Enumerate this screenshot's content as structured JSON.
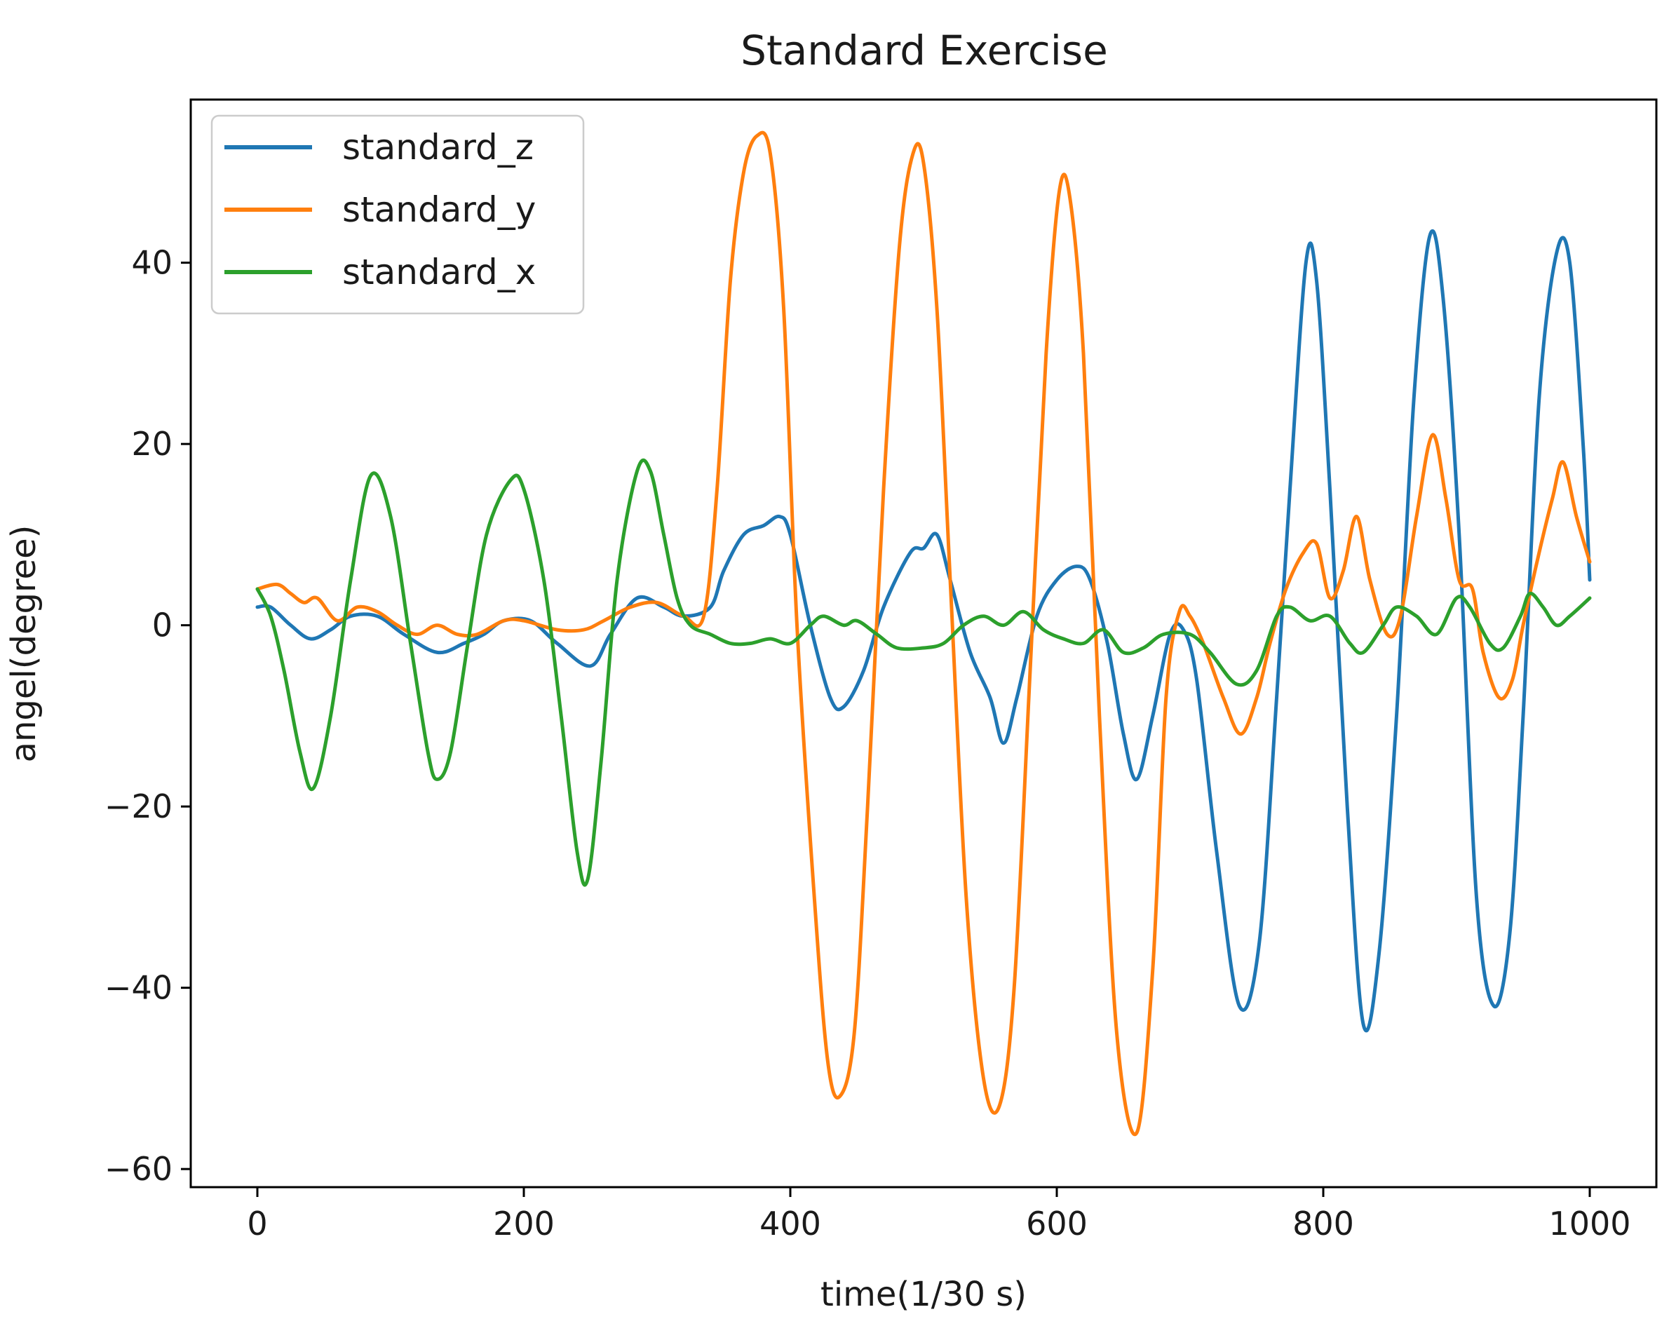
{
  "chart_data": {
    "type": "line",
    "title": "Standard Exercise",
    "xlabel": "time(1/30 s)",
    "ylabel": "angel(degree)",
    "xlim": [
      -50,
      1050
    ],
    "ylim": [
      -62,
      58
    ],
    "xticks": [
      0,
      200,
      400,
      600,
      800,
      1000
    ],
    "yticks": [
      -60,
      -40,
      -20,
      0,
      20,
      40
    ],
    "xtick_labels": [
      "0",
      "200",
      "400",
      "600",
      "800",
      "1000"
    ],
    "ytick_labels": [
      "−60",
      "−40",
      "−20",
      "0",
      "20",
      "40"
    ],
    "legend_position": "top-left",
    "series": [
      {
        "name": "standard_z",
        "color": "#1f77b4",
        "points": [
          [
            0,
            2
          ],
          [
            10,
            2
          ],
          [
            25,
            0
          ],
          [
            40,
            -1.5
          ],
          [
            55,
            -0.5
          ],
          [
            70,
            1
          ],
          [
            90,
            1
          ],
          [
            110,
            -1
          ],
          [
            135,
            -3
          ],
          [
            155,
            -2
          ],
          [
            170,
            -1
          ],
          [
            185,
            0.5
          ],
          [
            205,
            0.5
          ],
          [
            225,
            -2
          ],
          [
            250,
            -4.5
          ],
          [
            265,
            -1
          ],
          [
            285,
            3
          ],
          [
            305,
            2
          ],
          [
            320,
            1
          ],
          [
            340,
            2
          ],
          [
            350,
            6
          ],
          [
            365,
            10
          ],
          [
            380,
            11
          ],
          [
            392,
            12
          ],
          [
            400,
            10
          ],
          [
            415,
            0
          ],
          [
            430,
            -8
          ],
          [
            440,
            -9
          ],
          [
            455,
            -5
          ],
          [
            470,
            2
          ],
          [
            490,
            8
          ],
          [
            500,
            8.5
          ],
          [
            510,
            10
          ],
          [
            520,
            5
          ],
          [
            535,
            -3
          ],
          [
            550,
            -8
          ],
          [
            560,
            -13
          ],
          [
            570,
            -8
          ],
          [
            585,
            1
          ],
          [
            600,
            5
          ],
          [
            615,
            6.5
          ],
          [
            625,
            5
          ],
          [
            638,
            -2
          ],
          [
            650,
            -12
          ],
          [
            660,
            -17
          ],
          [
            672,
            -10
          ],
          [
            685,
            -1
          ],
          [
            695,
            -0.5
          ],
          [
            705,
            -6
          ],
          [
            720,
            -25
          ],
          [
            737,
            -42
          ],
          [
            752,
            -35
          ],
          [
            765,
            -8
          ],
          [
            775,
            15
          ],
          [
            787,
            40
          ],
          [
            795,
            38
          ],
          [
            805,
            15
          ],
          [
            818,
            -20
          ],
          [
            830,
            -44
          ],
          [
            842,
            -36
          ],
          [
            855,
            -10
          ],
          [
            868,
            25
          ],
          [
            880,
            43
          ],
          [
            890,
            36
          ],
          [
            902,
            10
          ],
          [
            915,
            -30
          ],
          [
            928,
            -42
          ],
          [
            940,
            -34
          ],
          [
            950,
            -10
          ],
          [
            962,
            25
          ],
          [
            975,
            41
          ],
          [
            985,
            40
          ],
          [
            995,
            20
          ],
          [
            1000,
            5
          ]
        ]
      },
      {
        "name": "standard_y",
        "color": "#ff7f0e",
        "points": [
          [
            0,
            4
          ],
          [
            15,
            4.5
          ],
          [
            25,
            3.5
          ],
          [
            35,
            2.5
          ],
          [
            45,
            3
          ],
          [
            60,
            0.5
          ],
          [
            75,
            2
          ],
          [
            90,
            1.5
          ],
          [
            105,
            0
          ],
          [
            120,
            -1
          ],
          [
            135,
            0
          ],
          [
            150,
            -1
          ],
          [
            165,
            -1
          ],
          [
            185,
            0.5
          ],
          [
            200,
            0.5
          ],
          [
            225,
            -0.5
          ],
          [
            245,
            -0.5
          ],
          [
            260,
            0.5
          ],
          [
            280,
            2
          ],
          [
            300,
            2.5
          ],
          [
            320,
            1
          ],
          [
            335,
            1
          ],
          [
            345,
            15
          ],
          [
            355,
            38
          ],
          [
            365,
            50
          ],
          [
            375,
            54
          ],
          [
            385,
            52
          ],
          [
            395,
            35
          ],
          [
            405,
            0
          ],
          [
            418,
            -30
          ],
          [
            428,
            -48
          ],
          [
            437,
            -52
          ],
          [
            448,
            -45
          ],
          [
            458,
            -20
          ],
          [
            470,
            15
          ],
          [
            482,
            42
          ],
          [
            492,
            52
          ],
          [
            500,
            51
          ],
          [
            510,
            35
          ],
          [
            520,
            5
          ],
          [
            532,
            -30
          ],
          [
            545,
            -50
          ],
          [
            557,
            -53
          ],
          [
            568,
            -40
          ],
          [
            580,
            -5
          ],
          [
            592,
            30
          ],
          [
            602,
            48
          ],
          [
            610,
            47
          ],
          [
            620,
            30
          ],
          [
            632,
            -10
          ],
          [
            645,
            -45
          ],
          [
            660,
            -56
          ],
          [
            672,
            -38
          ],
          [
            682,
            -8
          ],
          [
            692,
            1.5
          ],
          [
            700,
            1
          ],
          [
            710,
            -2
          ],
          [
            725,
            -8
          ],
          [
            738,
            -12
          ],
          [
            750,
            -8
          ],
          [
            760,
            -2
          ],
          [
            772,
            4
          ],
          [
            785,
            8
          ],
          [
            795,
            9
          ],
          [
            805,
            3
          ],
          [
            815,
            6
          ],
          [
            825,
            12
          ],
          [
            835,
            5
          ],
          [
            848,
            -1
          ],
          [
            858,
            1
          ],
          [
            870,
            12
          ],
          [
            882,
            21
          ],
          [
            892,
            14
          ],
          [
            902,
            5
          ],
          [
            912,
            4
          ],
          [
            920,
            -3
          ],
          [
            932,
            -8
          ],
          [
            942,
            -6
          ],
          [
            950,
            0
          ],
          [
            962,
            8
          ],
          [
            972,
            14
          ],
          [
            980,
            18
          ],
          [
            990,
            12
          ],
          [
            1000,
            7
          ]
        ]
      },
      {
        "name": "standard_x",
        "color": "#2ca02c",
        "points": [
          [
            0,
            4
          ],
          [
            10,
            1
          ],
          [
            20,
            -5
          ],
          [
            32,
            -14
          ],
          [
            42,
            -18
          ],
          [
            55,
            -10
          ],
          [
            70,
            5
          ],
          [
            85,
            16.5
          ],
          [
            100,
            12
          ],
          [
            115,
            -2
          ],
          [
            128,
            -14
          ],
          [
            135,
            -17
          ],
          [
            145,
            -14
          ],
          [
            158,
            -2
          ],
          [
            172,
            10
          ],
          [
            190,
            16
          ],
          [
            200,
            15
          ],
          [
            215,
            5
          ],
          [
            228,
            -10
          ],
          [
            240,
            -25
          ],
          [
            248,
            -28
          ],
          [
            258,
            -15
          ],
          [
            270,
            5
          ],
          [
            285,
            17
          ],
          [
            295,
            17
          ],
          [
            305,
            10
          ],
          [
            315,
            3
          ],
          [
            325,
            0
          ],
          [
            340,
            -1
          ],
          [
            355,
            -2
          ],
          [
            370,
            -2
          ],
          [
            385,
            -1.5
          ],
          [
            400,
            -2
          ],
          [
            415,
            0
          ],
          [
            425,
            1
          ],
          [
            440,
            0
          ],
          [
            450,
            0.5
          ],
          [
            465,
            -1
          ],
          [
            480,
            -2.5
          ],
          [
            500,
            -2.5
          ],
          [
            515,
            -2
          ],
          [
            530,
            0
          ],
          [
            545,
            1
          ],
          [
            560,
            0
          ],
          [
            575,
            1.5
          ],
          [
            590,
            -0.5
          ],
          [
            605,
            -1.5
          ],
          [
            620,
            -2
          ],
          [
            635,
            -0.5
          ],
          [
            650,
            -3
          ],
          [
            665,
            -2.5
          ],
          [
            680,
            -1
          ],
          [
            700,
            -1
          ],
          [
            715,
            -3
          ],
          [
            735,
            -6.5
          ],
          [
            750,
            -5
          ],
          [
            765,
            1
          ],
          [
            775,
            2
          ],
          [
            790,
            0.5
          ],
          [
            805,
            1
          ],
          [
            820,
            -2
          ],
          [
            830,
            -3
          ],
          [
            845,
            0
          ],
          [
            855,
            2
          ],
          [
            870,
            1
          ],
          [
            885,
            -1
          ],
          [
            900,
            3
          ],
          [
            910,
            2
          ],
          [
            925,
            -2
          ],
          [
            935,
            -2.5
          ],
          [
            948,
            1
          ],
          [
            955,
            3.5
          ],
          [
            965,
            2
          ],
          [
            975,
            0
          ],
          [
            985,
            1
          ],
          [
            1000,
            3
          ]
        ]
      }
    ]
  }
}
